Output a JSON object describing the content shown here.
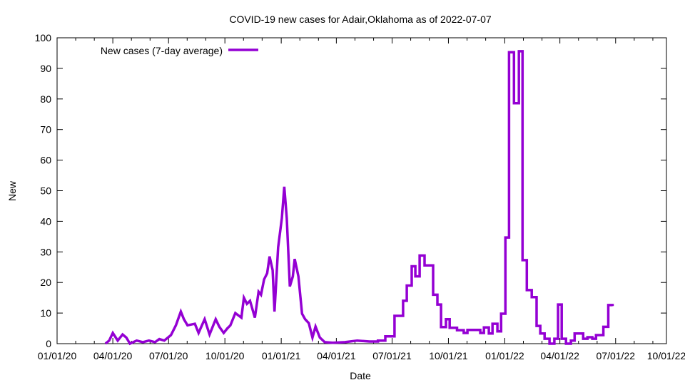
{
  "chart_data": {
    "type": "line",
    "title": "COVID-19 new cases for Adair,Oklahoma as of 2022-07-07",
    "xlabel": "Date",
    "ylabel": "New",
    "x_units": "days since 2020-01-01",
    "xlim": [
      0,
      995
    ],
    "ylim": [
      0,
      100
    ],
    "yticks": [
      0,
      10,
      20,
      30,
      40,
      50,
      60,
      70,
      80,
      90,
      100
    ],
    "xticks": [
      {
        "day": 0,
        "label": "01/01/20"
      },
      {
        "day": 91,
        "label": "04/01/20"
      },
      {
        "day": 182,
        "label": "07/01/20"
      },
      {
        "day": 274,
        "label": "10/01/20"
      },
      {
        "day": 366,
        "label": "01/01/21"
      },
      {
        "day": 456,
        "label": "04/01/21"
      },
      {
        "day": 547,
        "label": "07/01/21"
      },
      {
        "day": 639,
        "label": "10/01/21"
      },
      {
        "day": 731,
        "label": "01/01/22"
      },
      {
        "day": 821,
        "label": "04/01/22"
      },
      {
        "day": 912,
        "label": "07/01/22"
      },
      {
        "day": 1004,
        "label": "10/01/22"
      }
    ],
    "grid": false,
    "legend_placement": "top-left",
    "series": [
      {
        "name": "New cases (7-day average)",
        "color": "#9400d3",
        "step_from_day": 520,
        "points": [
          [
            79,
            0
          ],
          [
            85,
            1
          ],
          [
            91,
            3.5
          ],
          [
            99,
            1
          ],
          [
            107,
            3
          ],
          [
            113,
            2
          ],
          [
            119,
            0
          ],
          [
            130,
            1
          ],
          [
            140,
            0.5
          ],
          [
            150,
            1
          ],
          [
            160,
            0.5
          ],
          [
            167,
            1.5
          ],
          [
            175,
            1
          ],
          [
            186,
            2.8
          ],
          [
            194,
            6
          ],
          [
            202,
            10.5
          ],
          [
            207,
            8
          ],
          [
            213,
            6
          ],
          [
            225,
            6.5
          ],
          [
            231,
            3.5
          ],
          [
            241,
            8
          ],
          [
            249,
            3
          ],
          [
            259,
            8
          ],
          [
            265,
            5.5
          ],
          [
            272,
            3.5
          ],
          [
            278,
            5
          ],
          [
            283,
            6
          ],
          [
            291,
            10
          ],
          [
            301,
            8.5
          ],
          [
            305,
            15
          ],
          [
            310,
            13
          ],
          [
            315,
            14
          ],
          [
            323,
            8.5
          ],
          [
            329,
            17
          ],
          [
            333,
            16
          ],
          [
            338,
            21
          ],
          [
            343,
            23
          ],
          [
            347,
            28.5
          ],
          [
            352,
            24
          ],
          [
            355,
            10.5
          ],
          [
            361,
            31.5
          ],
          [
            367,
            41
          ],
          [
            371,
            51.3
          ],
          [
            375,
            41
          ],
          [
            380,
            18.7
          ],
          [
            385,
            22
          ],
          [
            388,
            27.7
          ],
          [
            394,
            22
          ],
          [
            400,
            9.8
          ],
          [
            405,
            8
          ],
          [
            411,
            6.7
          ],
          [
            417,
            2
          ],
          [
            422,
            5.6
          ],
          [
            429,
            2
          ],
          [
            437,
            0.5
          ],
          [
            450,
            0.3
          ],
          [
            470,
            0.5
          ],
          [
            490,
            1
          ],
          [
            510,
            0.7
          ],
          [
            524,
            1
          ],
          [
            536,
            2.4
          ],
          [
            551,
            9.1
          ],
          [
            565,
            14
          ],
          [
            571,
            19
          ],
          [
            579,
            25.3
          ],
          [
            585,
            22
          ],
          [
            592,
            28.8
          ],
          [
            600,
            25.6
          ],
          [
            614,
            16
          ],
          [
            621,
            12.8
          ],
          [
            627,
            5.4
          ],
          [
            635,
            8
          ],
          [
            641,
            5.2
          ],
          [
            653,
            4.4
          ],
          [
            664,
            3.5
          ],
          [
            670,
            4.5
          ],
          [
            691,
            3.5
          ],
          [
            697,
            5.3
          ],
          [
            705,
            3.3
          ],
          [
            711,
            6.5
          ],
          [
            719,
            4
          ],
          [
            725,
            9.8
          ],
          [
            732,
            34.7
          ],
          [
            738,
            95.3
          ],
          [
            746,
            78.6
          ],
          [
            754,
            95.6
          ],
          [
            760,
            27.3
          ],
          [
            767,
            17.5
          ],
          [
            775,
            15.2
          ],
          [
            783,
            5.8
          ],
          [
            789,
            3.3
          ],
          [
            796,
            1.6
          ],
          [
            804,
            0
          ],
          [
            812,
            1.6
          ],
          [
            818,
            12.8
          ],
          [
            824,
            1.6
          ],
          [
            831,
            0
          ],
          [
            839,
            1
          ],
          [
            845,
            3.3
          ],
          [
            859,
            1.6
          ],
          [
            866,
            2.1
          ],
          [
            874,
            1.6
          ],
          [
            880,
            2.8
          ],
          [
            892,
            5.5
          ],
          [
            900,
            12.6
          ],
          [
            907,
            12.3
          ]
        ]
      }
    ]
  }
}
